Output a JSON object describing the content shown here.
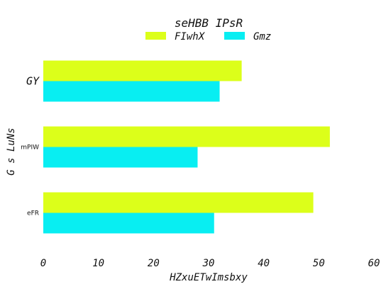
{
  "chart_data": {
    "type": "bar",
    "orientation": "horizontal",
    "title": "seHBB IPsR",
    "xlabel": "HZxuETwImsbxy",
    "ylabel": "G  s LuNs",
    "categories": [
      "GY",
      "mPIW",
      "eFR"
    ],
    "category_label_sizes": [
      "large",
      "small",
      "small"
    ],
    "series": [
      {
        "name": "FIwhX",
        "color": "#dcff1a",
        "values": [
          36,
          52,
          49
        ]
      },
      {
        "name": "Gmz",
        "color": "#08eef2",
        "values": [
          32,
          28,
          31
        ]
      }
    ],
    "xlim": [
      0,
      60
    ],
    "xticks": [
      "0",
      "10",
      "20",
      "30",
      "40",
      "50",
      "60"
    ],
    "grid": false,
    "legend_position": "top-center"
  }
}
